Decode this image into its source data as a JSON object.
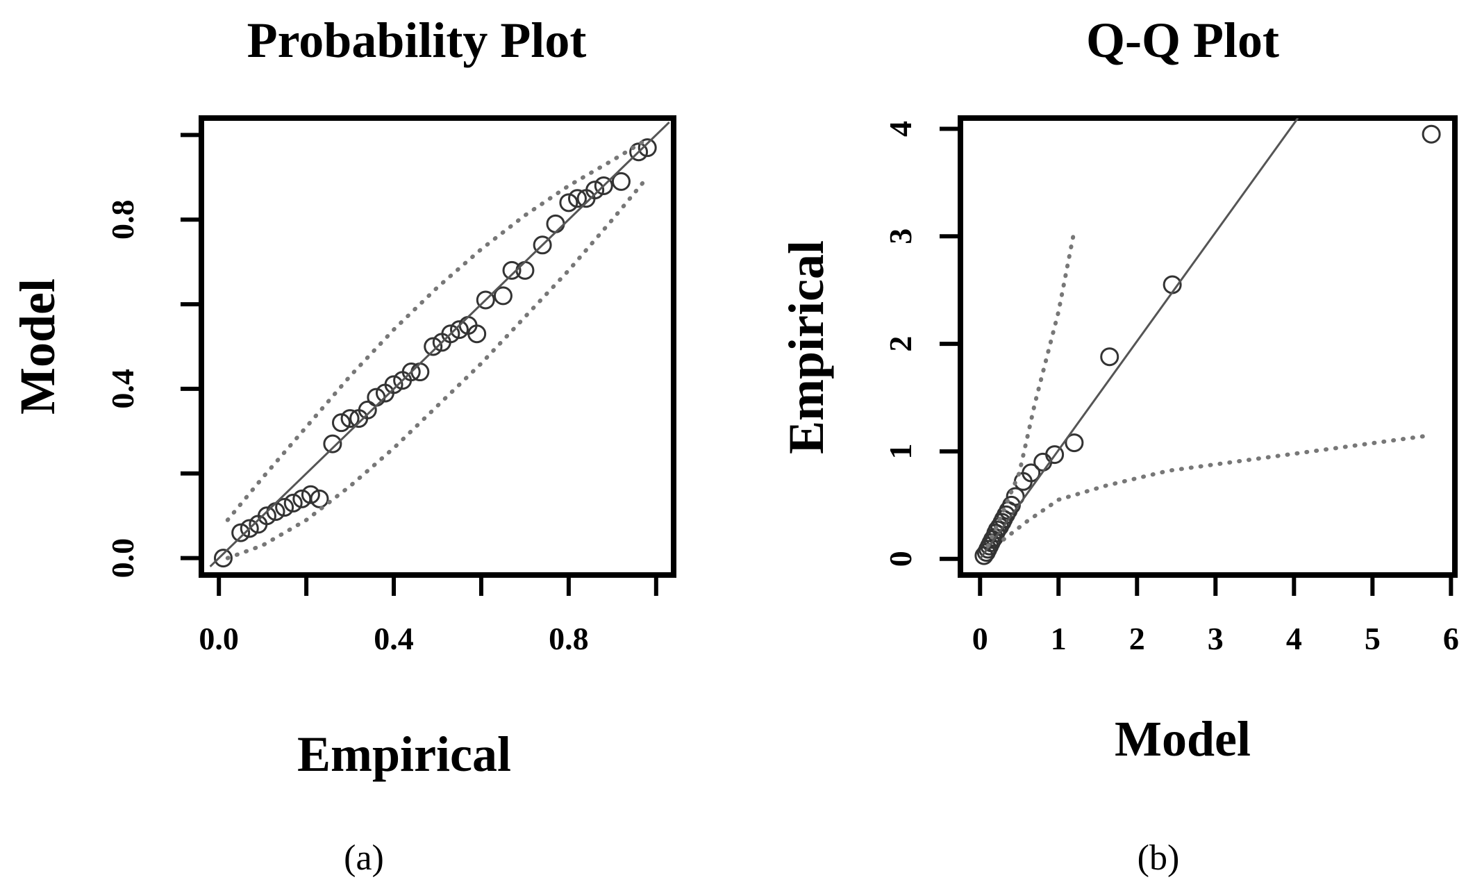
{
  "chart_data": [
    {
      "type": "scatter",
      "panel_caption": "(a)",
      "title": "Probability Plot",
      "xlabel": "Empirical",
      "ylabel": "Model",
      "xlim": [
        -0.04,
        1.04
      ],
      "ylim": [
        -0.04,
        1.04
      ],
      "x_ticks": [
        0.0,
        0.2,
        0.4,
        0.6,
        0.8,
        1.0
      ],
      "x_tick_labels": [
        "0.0",
        "",
        "0.4",
        "",
        "0.8",
        ""
      ],
      "y_ticks": [
        0.0,
        0.2,
        0.4,
        0.6,
        0.8,
        1.0
      ],
      "y_tick_labels": [
        "0.0",
        "",
        "0.4",
        "",
        "0.8",
        ""
      ],
      "grid": false,
      "series": [
        {
          "style": "points",
          "marker": "circle",
          "x": [
            0.01,
            0.05,
            0.07,
            0.09,
            0.11,
            0.13,
            0.15,
            0.17,
            0.19,
            0.21,
            0.23,
            0.26,
            0.28,
            0.3,
            0.32,
            0.34,
            0.36,
            0.38,
            0.4,
            0.42,
            0.44,
            0.46,
            0.49,
            0.51,
            0.53,
            0.55,
            0.57,
            0.59,
            0.61,
            0.65,
            0.67,
            0.7,
            0.74,
            0.77,
            0.8,
            0.82,
            0.84,
            0.86,
            0.88,
            0.92,
            0.96,
            0.98
          ],
          "y": [
            0.0,
            0.06,
            0.07,
            0.08,
            0.1,
            0.11,
            0.12,
            0.13,
            0.14,
            0.15,
            0.14,
            0.27,
            0.32,
            0.33,
            0.33,
            0.35,
            0.38,
            0.39,
            0.41,
            0.42,
            0.44,
            0.44,
            0.5,
            0.51,
            0.53,
            0.54,
            0.55,
            0.53,
            0.61,
            0.62,
            0.68,
            0.68,
            0.74,
            0.79,
            0.84,
            0.85,
            0.85,
            0.87,
            0.88,
            0.89,
            0.96,
            0.97
          ]
        },
        {
          "style": "line",
          "x": [
            -0.02,
            1.03
          ],
          "y": [
            -0.02,
            1.03
          ]
        },
        {
          "style": "dotted",
          "x": [
            0.02,
            0.1,
            0.2,
            0.3,
            0.4,
            0.5,
            0.6,
            0.7,
            0.8,
            0.9,
            0.98
          ],
          "y": [
            0.09,
            0.19,
            0.31,
            0.43,
            0.54,
            0.64,
            0.73,
            0.81,
            0.88,
            0.94,
            0.99
          ]
        },
        {
          "style": "dotted",
          "x": [
            0.02,
            0.1,
            0.2,
            0.3,
            0.4,
            0.5,
            0.6,
            0.7,
            0.8,
            0.9,
            0.98
          ],
          "y": [
            0.0,
            0.03,
            0.09,
            0.17,
            0.26,
            0.36,
            0.46,
            0.57,
            0.68,
            0.8,
            0.9
          ]
        }
      ]
    },
    {
      "type": "scatter",
      "panel_caption": "(b)",
      "title": "Q-Q Plot",
      "xlabel": "Model",
      "ylabel": "Empirical",
      "xlim": [
        -0.25,
        6.05
      ],
      "ylim": [
        -0.15,
        4.1
      ],
      "x_ticks": [
        0,
        1,
        2,
        3,
        4,
        5,
        6
      ],
      "x_tick_labels": [
        "0",
        "1",
        "2",
        "3",
        "4",
        "5",
        "6"
      ],
      "y_ticks": [
        0,
        1,
        2,
        3,
        4
      ],
      "y_tick_labels": [
        "0",
        "1",
        "2",
        "3",
        "4"
      ],
      "grid": false,
      "series": [
        {
          "style": "points",
          "marker": "circle",
          "x": [
            0.05,
            0.08,
            0.1,
            0.12,
            0.14,
            0.16,
            0.18,
            0.2,
            0.22,
            0.25,
            0.28,
            0.3,
            0.33,
            0.36,
            0.4,
            0.45,
            0.55,
            0.65,
            0.8,
            0.95,
            1.2,
            1.65,
            2.45,
            5.75
          ],
          "y": [
            0.03,
            0.06,
            0.09,
            0.12,
            0.15,
            0.18,
            0.2,
            0.24,
            0.27,
            0.3,
            0.34,
            0.37,
            0.41,
            0.45,
            0.5,
            0.58,
            0.72,
            0.8,
            0.9,
            0.97,
            1.08,
            1.88,
            2.55,
            3.95
          ]
        },
        {
          "style": "line",
          "x": [
            0.0,
            4.05
          ],
          "y": [
            0.0,
            4.1
          ]
        },
        {
          "style": "dotted",
          "x": [
            0.1,
            0.3,
            0.5,
            0.7,
            1.0,
            1.2
          ],
          "y": [
            0.12,
            0.45,
            0.8,
            1.45,
            2.3,
            3.05
          ]
        },
        {
          "style": "dotted",
          "x": [
            0.3,
            0.6,
            1.0,
            1.6,
            2.4,
            5.75
          ],
          "y": [
            0.18,
            0.35,
            0.55,
            0.68,
            0.82,
            1.15
          ]
        }
      ]
    }
  ]
}
